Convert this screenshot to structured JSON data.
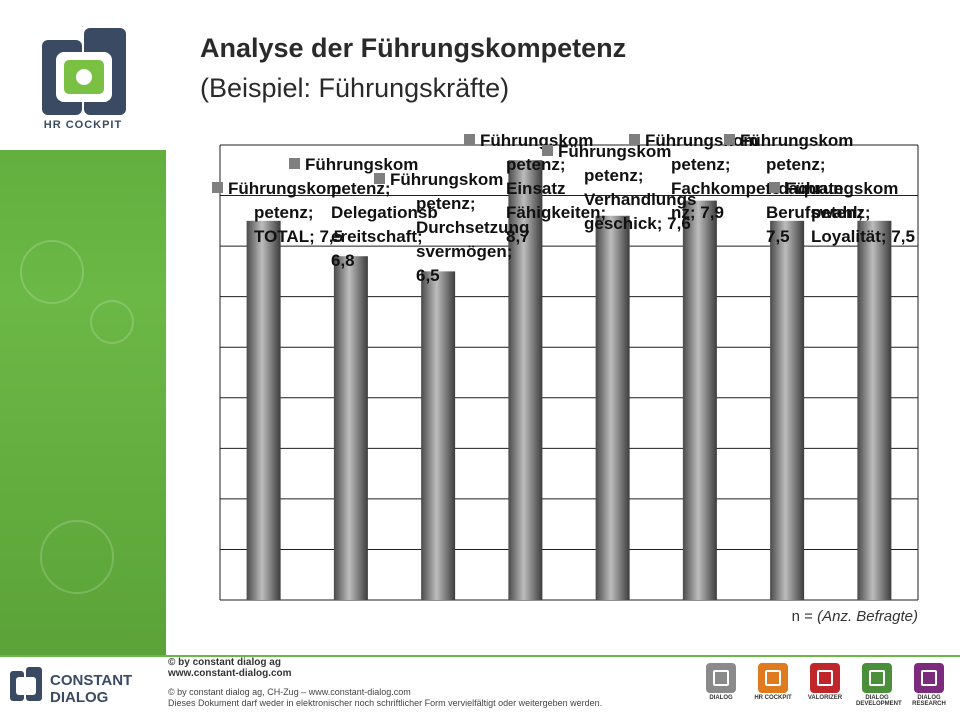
{
  "title": {
    "line1": "Analyse der Führungskompetenz",
    "line2": "(Beispiel: Führungskräfte)"
  },
  "logo": {
    "text": "HR COCKPIT"
  },
  "note": {
    "prefix": "n = ",
    "italic": "(Anz. Befragte)"
  },
  "footer": {
    "brand_line1": "© by constant dialog ag",
    "brand_line2": "www.constant-dialog.com",
    "copy_line1": "© by constant dialog ag, CH-Zug – www.constant-dialog.com",
    "copy_line2": "Dieses Dokument darf weder in elektronischer noch schriftlicher Form vervielfältigt oder weitergeben werden.",
    "company": [
      "CONSTANT",
      "DIALOG"
    ],
    "apps": [
      {
        "label": "DIALOG",
        "color": "#8a8a8a"
      },
      {
        "label": "HR COCKPIT",
        "color": "#e07a1f"
      },
      {
        "label": "VALORIZER",
        "color": "#c0272d"
      },
      {
        "label": "DIALOG DEVELOPMENT",
        "color": "#4b8f3a"
      },
      {
        "label": "DIALOG RESEARCH",
        "color": "#7b2a7d"
      }
    ]
  },
  "colors": {
    "bar": "#7f7f7f",
    "accent": "#6cb846",
    "grid": "#1f1f1f"
  },
  "chart_data": {
    "type": "bar",
    "values": [
      7.5,
      6.8,
      6.5,
      8.7,
      7.6,
      7.9,
      7.5,
      7.5
    ],
    "ylim": [
      0,
      9
    ],
    "grid": true,
    "legend": "top",
    "data_labels": [
      [
        "Führungskom",
        "petenz;",
        "TOTAL; 7,5"
      ],
      [
        "Führungskom",
        "petenz;",
        "Delegationsb",
        "ereitschaft;",
        "6,8"
      ],
      [
        "Führungskom",
        "petenz;",
        "Durchsetzung",
        "svermögen;",
        "6,5"
      ],
      [
        "Führungskom",
        "petenz;",
        "Einsatz",
        "Fähigkeiten;",
        "8,7"
      ],
      [
        "Führungskom",
        "petenz;",
        "Verhandlungs",
        "geschick; 7,6"
      ],
      [
        "Führungskom",
        "petenz;",
        "Fachkompete",
        "nz; 7,9"
      ],
      [
        "Führungskom",
        "petenz;",
        "Adäquate",
        "Berufswahl;",
        "7,5"
      ],
      [
        "Führungskom",
        "petenz;",
        "Loyalität; 7,5"
      ]
    ]
  }
}
